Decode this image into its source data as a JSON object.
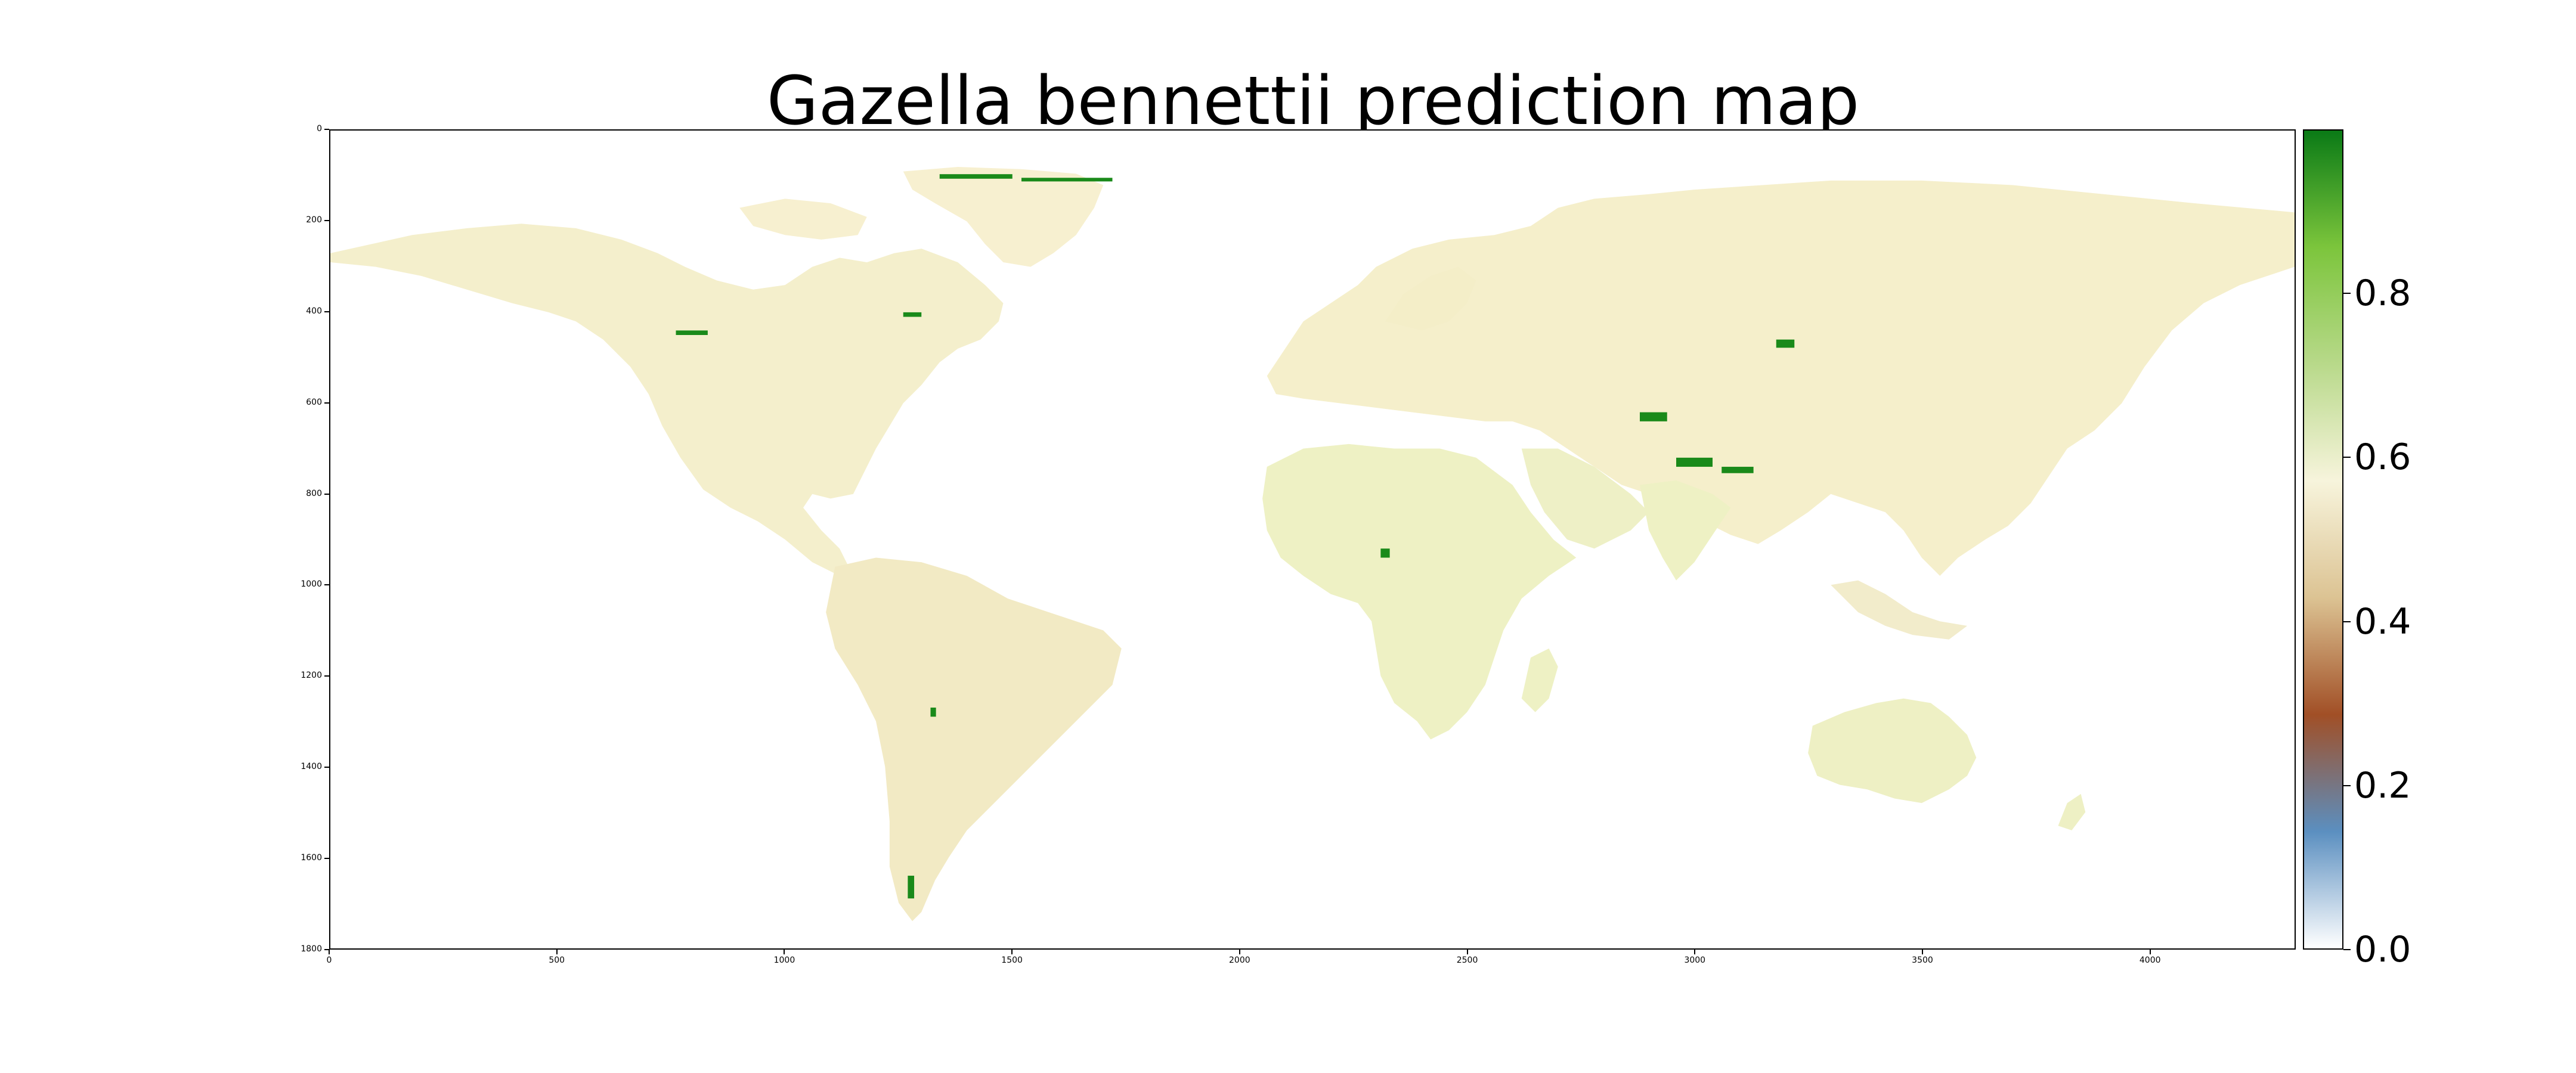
{
  "title": "Gazella bennettii prediction map",
  "map": {
    "extent_x": [
      0,
      4320
    ],
    "extent_y": [
      0,
      1800
    ],
    "x_ticks": [
      "0",
      "500",
      "1000",
      "1500",
      "2000",
      "2500",
      "3000",
      "3500",
      "4000"
    ],
    "y_ticks": [
      "0",
      "200",
      "400",
      "600",
      "800",
      "1000",
      "1200",
      "1400",
      "1600",
      "1800"
    ],
    "background_color": "#ffffff",
    "land_color": "#f6eec8",
    "high_value_color": "#1a8a1a"
  },
  "colorbar": {
    "range": [
      0.0,
      1.0
    ],
    "ticks": [
      "0.0",
      "0.2",
      "0.4",
      "0.6",
      "0.8"
    ],
    "colors": [
      "#ffffff",
      "#5b8fc0",
      "#a14f26",
      "#dcc393",
      "#f7f4dc",
      "#b8d98a",
      "#7cc53c",
      "#0a7a16"
    ]
  }
}
